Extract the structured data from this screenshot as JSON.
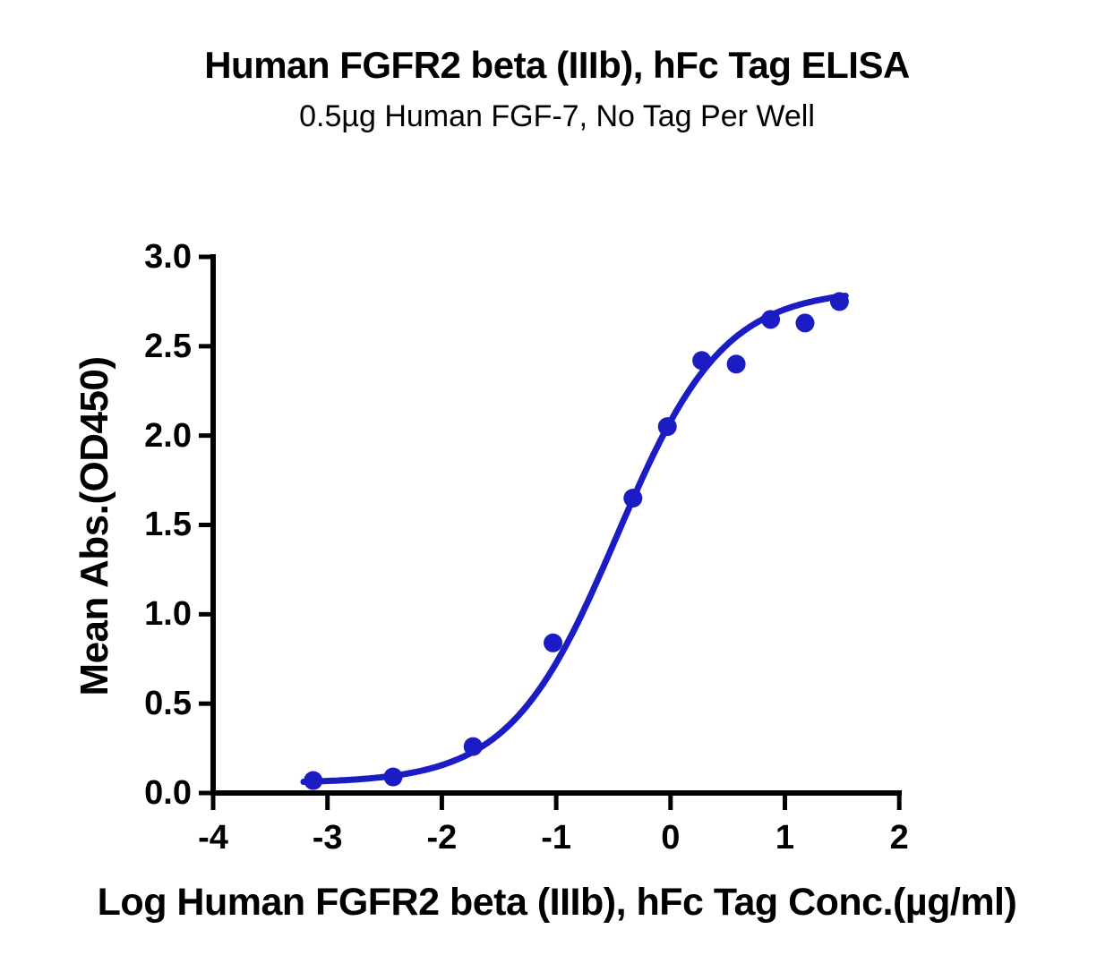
{
  "chart_data": {
    "type": "scatter",
    "title": "Human FGFR2 beta (IIIb), hFc Tag ELISA",
    "subtitle": "0.5µg Human FGF-7, No Tag Per Well",
    "xlabel": "Log Human FGFR2 beta (IIIb), hFc Tag Conc.(µg/ml)",
    "ylabel": "Mean Abs.(OD450)",
    "xlim": [
      -4,
      2
    ],
    "ylim": [
      0,
      3
    ],
    "grid": false,
    "legend": false,
    "axis_color": "#000000",
    "marker_color": "#1c1cc4",
    "curve_color": "#1c1cc4",
    "x_ticks": [
      {
        "label": "-4",
        "value": -4
      },
      {
        "label": "-3",
        "value": -3
      },
      {
        "label": "-2",
        "value": -2
      },
      {
        "label": "-1",
        "value": -1
      },
      {
        "label": "0",
        "value": 0
      },
      {
        "label": "1",
        "value": 1
      },
      {
        "label": "2",
        "value": 2
      }
    ],
    "y_ticks": [
      {
        "label": "0.0",
        "value": 0.0
      },
      {
        "label": "0.5",
        "value": 0.5
      },
      {
        "label": "1.0",
        "value": 1.0
      },
      {
        "label": "1.5",
        "value": 1.5
      },
      {
        "label": "2.0",
        "value": 2.0
      },
      {
        "label": "2.5",
        "value": 2.5
      },
      {
        "label": "3.0",
        "value": 3.0
      }
    ],
    "series": [
      {
        "name": "Human FGFR2 beta (IIIb), hFc Tag",
        "marker": "circle",
        "points": [
          {
            "log_conc": -3.125,
            "od450": 0.07
          },
          {
            "log_conc": -2.426,
            "od450": 0.09
          },
          {
            "log_conc": -1.727,
            "od450": 0.26
          },
          {
            "log_conc": -1.028,
            "od450": 0.84
          },
          {
            "log_conc": -0.329,
            "od450": 1.65
          },
          {
            "log_conc": -0.028,
            "od450": 2.05
          },
          {
            "log_conc": 0.273,
            "od450": 2.42
          },
          {
            "log_conc": 0.574,
            "od450": 2.4
          },
          {
            "log_conc": 0.875,
            "od450": 2.65
          },
          {
            "log_conc": 1.176,
            "od450": 2.63
          },
          {
            "log_conc": 1.477,
            "od450": 2.75
          }
        ]
      }
    ],
    "fit_curve": {
      "model": "4PL sigmoidal dose-response",
      "bottom": 0.055,
      "top": 2.82,
      "log_ec50": -0.47,
      "hill_slope": 0.93,
      "x_start": -3.21,
      "x_end": 1.54
    }
  }
}
